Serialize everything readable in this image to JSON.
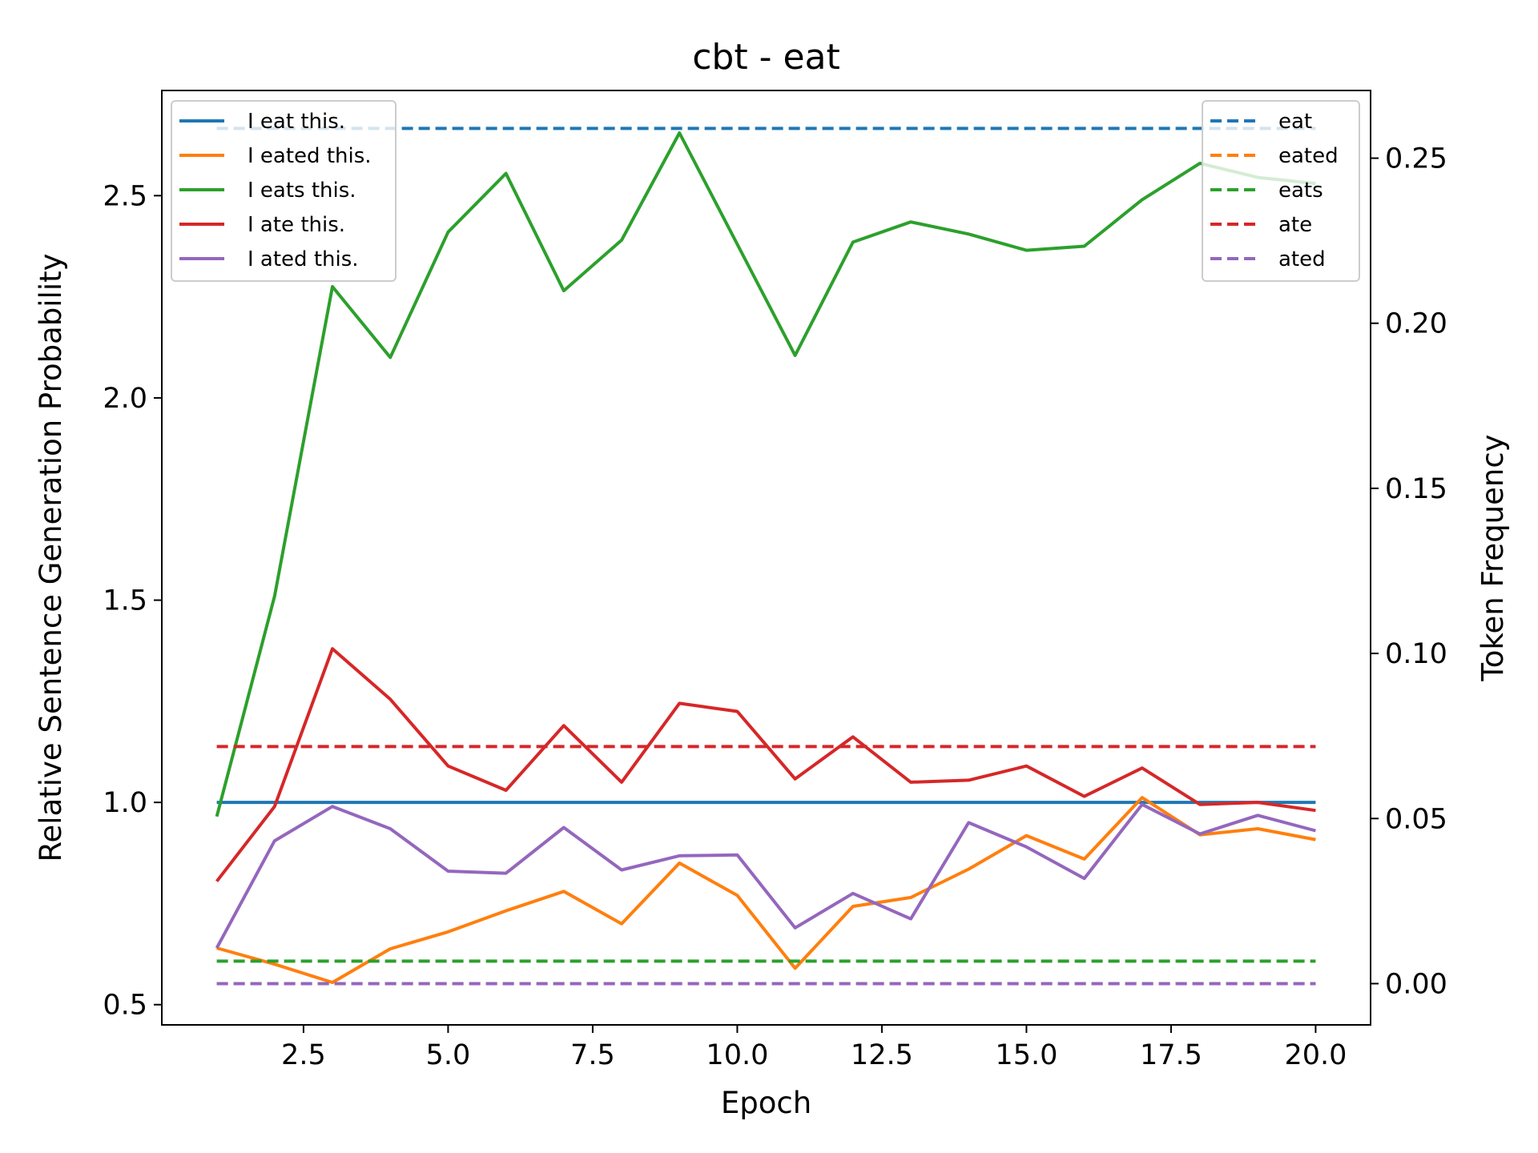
{
  "chart_data": {
    "type": "line",
    "title": "cbt - eat",
    "xlabel": "Epoch",
    "ylabel_left": "Relative Sentence Generation Probability",
    "ylabel_right": "Token Frequency",
    "xlim": [
      0.05,
      20.95
    ],
    "ylim_left": [
      0.45,
      2.76
    ],
    "ylim_right": [
      -0.0125,
      0.2705
    ],
    "x_ticks": [
      2.5,
      5.0,
      7.5,
      10.0,
      12.5,
      15.0,
      17.5,
      20.0
    ],
    "x_tick_labels": [
      "2.5",
      "5.0",
      "7.5",
      "10.0",
      "12.5",
      "15.0",
      "17.5",
      "20.0"
    ],
    "y_left_ticks": [
      0.5,
      1.0,
      1.5,
      2.0,
      2.5
    ],
    "y_left_tick_labels": [
      "0.5",
      "1.0",
      "1.5",
      "2.0",
      "2.5"
    ],
    "y_right_ticks": [
      0.0,
      0.05,
      0.1,
      0.15,
      0.2,
      0.25
    ],
    "y_right_tick_labels": [
      "0.00",
      "0.05",
      "0.10",
      "0.15",
      "0.20",
      "0.25"
    ],
    "grid": false,
    "legend_left_placement": "upper-left",
    "legend_right_placement": "upper-right",
    "x": [
      1,
      2,
      3,
      4,
      5,
      6,
      7,
      8,
      9,
      10,
      11,
      12,
      13,
      14,
      15,
      16,
      17,
      18,
      19,
      20
    ],
    "series": [
      {
        "name": "I eat this.",
        "axis": "left",
        "style": "solid",
        "color": "#1f77b4",
        "values": [
          1.0,
          1.0,
          1.0,
          1.0,
          1.0,
          1.0,
          1.0,
          1.0,
          1.0,
          1.0,
          1.0,
          1.0,
          1.0,
          1.0,
          1.0,
          1.0,
          1.0,
          1.0,
          1.0,
          1.0
        ]
      },
      {
        "name": "I eated this.",
        "axis": "left",
        "style": "solid",
        "color": "#ff7f0e",
        "values": [
          0.64,
          0.6,
          0.555,
          0.638,
          0.68,
          0.732,
          0.78,
          0.7,
          0.85,
          0.77,
          0.59,
          0.743,
          0.765,
          0.835,
          0.918,
          0.86,
          1.012,
          0.92,
          0.935,
          0.908
        ]
      },
      {
        "name": "I eats this.",
        "axis": "left",
        "style": "solid",
        "color": "#2ca02c",
        "values": [
          0.965,
          1.51,
          2.275,
          2.1,
          2.41,
          2.555,
          2.265,
          2.39,
          2.655,
          2.38,
          2.105,
          2.385,
          2.435,
          2.405,
          2.365,
          2.375,
          2.49,
          2.58,
          2.545,
          2.53
        ]
      },
      {
        "name": "I ate this.",
        "axis": "left",
        "style": "solid",
        "color": "#d62728",
        "values": [
          0.805,
          0.99,
          1.38,
          1.255,
          1.09,
          1.03,
          1.19,
          1.05,
          1.245,
          1.225,
          1.058,
          1.162,
          1.05,
          1.055,
          1.09,
          1.015,
          1.085,
          0.995,
          1.0,
          0.98
        ]
      },
      {
        "name": "I ated this.",
        "axis": "left",
        "style": "solid",
        "color": "#9467bd",
        "values": [
          0.64,
          0.905,
          0.99,
          0.935,
          0.83,
          0.825,
          0.938,
          0.833,
          0.868,
          0.87,
          0.69,
          0.775,
          0.712,
          0.95,
          0.89,
          0.812,
          0.995,
          0.922,
          0.968,
          0.93
        ]
      },
      {
        "name": "eat",
        "axis": "right",
        "style": "dashed",
        "color": "#1f77b4",
        "values": [
          0.259,
          0.259,
          0.259,
          0.259,
          0.259,
          0.259,
          0.259,
          0.259,
          0.259,
          0.259,
          0.259,
          0.259,
          0.259,
          0.259,
          0.259,
          0.259,
          0.259,
          0.259,
          0.259,
          0.259
        ]
      },
      {
        "name": "eated",
        "axis": "right",
        "style": "dashed",
        "color": "#ff7f0e",
        "values": [
          0.0,
          0.0,
          0.0,
          0.0,
          0.0,
          0.0,
          0.0,
          0.0,
          0.0,
          0.0,
          0.0,
          0.0,
          0.0,
          0.0,
          0.0,
          0.0,
          0.0,
          0.0,
          0.0,
          0.0
        ]
      },
      {
        "name": "eats",
        "axis": "right",
        "style": "dashed",
        "color": "#2ca02c",
        "values": [
          0.0068,
          0.0068,
          0.0068,
          0.0068,
          0.0068,
          0.0068,
          0.0068,
          0.0068,
          0.0068,
          0.0068,
          0.0068,
          0.0068,
          0.0068,
          0.0068,
          0.0068,
          0.0068,
          0.0068,
          0.0068,
          0.0068,
          0.0068
        ]
      },
      {
        "name": "ate",
        "axis": "right",
        "style": "dashed",
        "color": "#d62728",
        "values": [
          0.0718,
          0.0718,
          0.0718,
          0.0718,
          0.0718,
          0.0718,
          0.0718,
          0.0718,
          0.0718,
          0.0718,
          0.0718,
          0.0718,
          0.0718,
          0.0718,
          0.0718,
          0.0718,
          0.0718,
          0.0718,
          0.0718,
          0.0718
        ]
      },
      {
        "name": "ated",
        "axis": "right",
        "style": "dashed",
        "color": "#9467bd",
        "values": [
          0.0,
          0.0,
          0.0,
          0.0,
          0.0,
          0.0,
          0.0,
          0.0,
          0.0,
          0.0,
          0.0,
          0.0,
          0.0,
          0.0,
          0.0,
          0.0,
          0.0,
          0.0,
          0.0,
          0.0
        ]
      }
    ]
  }
}
